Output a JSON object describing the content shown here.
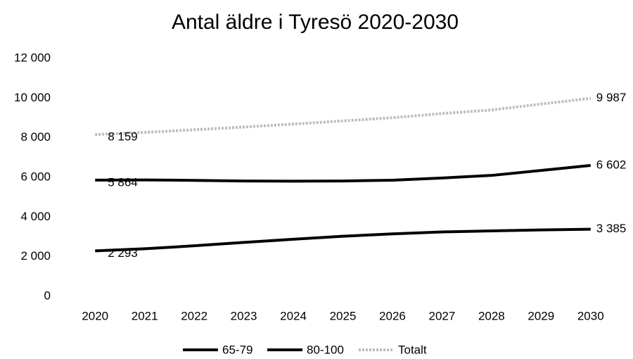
{
  "chart_data": {
    "type": "line",
    "title": "Antal äldre i Tyresö 2020-2030",
    "categories": [
      "2020",
      "2021",
      "2022",
      "2023",
      "2024",
      "2025",
      "2026",
      "2027",
      "2028",
      "2029",
      "2030"
    ],
    "series": [
      {
        "name": "65-79",
        "color": "#000000",
        "values": [
          5864,
          5870,
          5850,
          5820,
          5810,
          5820,
          5860,
          5970,
          6100,
          6350,
          6602
        ],
        "value_labels": [
          "5 864",
          null,
          null,
          null,
          null,
          null,
          null,
          null,
          null,
          null,
          "6 602"
        ]
      },
      {
        "name": "80-100",
        "color": "#000000",
        "values": [
          2293,
          2400,
          2550,
          2720,
          2880,
          3030,
          3150,
          3250,
          3300,
          3350,
          3385
        ],
        "value_labels": [
          "2 293",
          null,
          null,
          null,
          null,
          null,
          null,
          null,
          null,
          null,
          "3 385"
        ]
      },
      {
        "name": "Totalt",
        "color": "#bdbdbd",
        "values": [
          8159,
          8270,
          8400,
          8540,
          8690,
          8850,
          9010,
          9220,
          9400,
          9700,
          9987
        ],
        "value_labels": [
          "8 159",
          null,
          null,
          null,
          null,
          null,
          null,
          null,
          null,
          null,
          "9 987"
        ]
      }
    ],
    "ylim": [
      0,
      12000
    ],
    "yticks": [
      0,
      {
        "value": 2000,
        "label": "2 000"
      },
      {
        "value": 4000,
        "label": "4 000"
      },
      {
        "value": 6000,
        "label": "6 000"
      },
      {
        "value": 8000,
        "label": "8 000"
      },
      {
        "value": 10000,
        "label": "10 000"
      },
      {
        "value": 12000,
        "label": "12 000"
      }
    ],
    "grid": false,
    "legend": "bottom"
  }
}
